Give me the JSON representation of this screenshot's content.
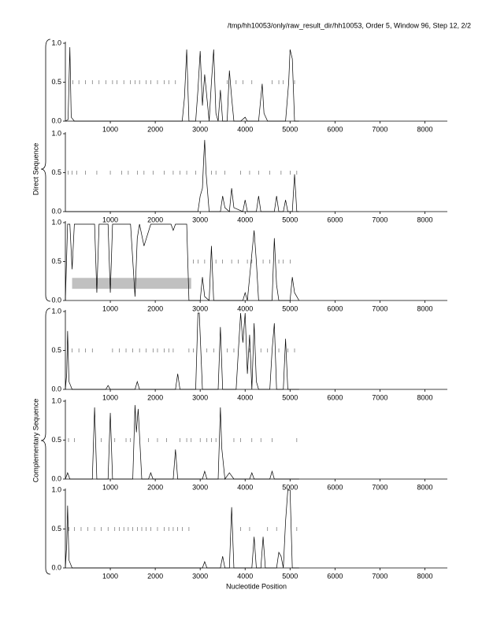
{
  "header": "/tmp/hh10053/only/raw_result_dir/hh10053, Order 5, Window 96, Step 12, 2/2",
  "strand_labels": {
    "direct": "Direct Sequence",
    "complementary": "Complementary Sequence"
  },
  "chart_data": [
    {
      "type": "line",
      "color": "#000000",
      "x": [
        0,
        60,
        100,
        130,
        200,
        2600,
        2650,
        2700,
        2750,
        2900,
        2950,
        3000,
        3050,
        3100,
        3200,
        3250,
        3300,
        3350,
        3400,
        3450,
        3500,
        3600,
        3650,
        3700,
        3750,
        3900,
        4000,
        4050,
        4300,
        4380,
        4420,
        4500,
        4900,
        4970,
        5000,
        5050,
        5100,
        5200
      ],
      "values": [
        0,
        0.02,
        0.95,
        0.05,
        0,
        0,
        0.3,
        0.92,
        0,
        0,
        0.4,
        0.9,
        0.2,
        0.6,
        0,
        0.5,
        0.92,
        0.1,
        0,
        0.4,
        0,
        0,
        0.65,
        0.3,
        0,
        0,
        0.05,
        0,
        0,
        0.48,
        0.1,
        0,
        0,
        0.5,
        0.92,
        0.8,
        0,
        0
      ],
      "codon_marks": [
        170,
        300,
        450,
        600,
        750,
        900,
        1050,
        1150,
        1300,
        1450,
        1550,
        1650,
        1800,
        1900,
        2050,
        2200,
        2300,
        2450,
        3600,
        3800,
        3950,
        4150,
        4600,
        4750,
        4850,
        5100
      ],
      "xlim": [
        0,
        8500
      ],
      "ylim": [
        0,
        1
      ],
      "xticks": [
        1000,
        2000,
        3000,
        4000,
        5000,
        6000,
        7000,
        8000
      ],
      "yticks": [
        {
          "value": 0,
          "label": "0.0"
        },
        {
          "value": 0.5,
          "label": "0.5"
        },
        {
          "value": 1,
          "label": "1.0"
        }
      ]
    },
    {
      "type": "line",
      "color": "#000000",
      "x": [
        0,
        2950,
        3000,
        3050,
        3080,
        3100,
        3130,
        3200,
        3450,
        3500,
        3550,
        3650,
        3700,
        3750,
        3950,
        4000,
        4050,
        4250,
        4300,
        4350,
        4650,
        4700,
        4750,
        4850,
        4900,
        4950,
        5050,
        5100,
        5150,
        5200
      ],
      "values": [
        0,
        0,
        0.2,
        0.3,
        0.7,
        0.92,
        0.5,
        0,
        0,
        0.2,
        0.05,
        0,
        0.3,
        0.05,
        0,
        0.15,
        0,
        0,
        0.2,
        0,
        0,
        0.2,
        0,
        0,
        0.15,
        0,
        0,
        0.48,
        0,
        0
      ],
      "codon_marks": [
        60,
        150,
        250,
        450,
        700,
        1000,
        1250,
        1400,
        1600,
        1750,
        1950,
        2200,
        2400,
        2550,
        2700,
        2900,
        3250,
        3350,
        3550,
        3900,
        4100,
        4300,
        4550,
        4800,
        5000,
        5150
      ],
      "xlim": [
        0,
        8500
      ],
      "ylim": [
        0,
        1
      ],
      "xticks": [
        1000,
        2000,
        3000,
        4000,
        5000,
        6000,
        7000,
        8000
      ],
      "yticks": [
        {
          "value": 0,
          "label": "0.0"
        },
        {
          "value": 0.5,
          "label": "0.5"
        },
        {
          "value": 1,
          "label": "1.0"
        }
      ]
    },
    {
      "type": "line",
      "color": "#000000",
      "x": [
        0,
        50,
        100,
        150,
        200,
        300,
        400,
        500,
        650,
        700,
        750,
        850,
        950,
        1000,
        1050,
        1200,
        1450,
        1550,
        1600,
        1650,
        1750,
        1900,
        2100,
        2350,
        2400,
        2450,
        2600,
        2700,
        2750,
        2800,
        3000,
        3050,
        3100,
        3200,
        3250,
        3300,
        3950,
        4000,
        4050,
        4150,
        4200,
        4250,
        4300,
        4600,
        4650,
        4700,
        4750,
        5000,
        5050,
        5100,
        5200
      ],
      "values": [
        0,
        0.98,
        0.98,
        0.4,
        0.98,
        0.98,
        0.98,
        0.98,
        0.98,
        0.1,
        0.98,
        0.98,
        0.98,
        0.1,
        0.98,
        0.98,
        0.98,
        0.05,
        0.8,
        0.98,
        0.7,
        0.98,
        0.98,
        0.98,
        0.9,
        0.98,
        0.98,
        0.98,
        0,
        0,
        0,
        0.3,
        0.05,
        0,
        0.7,
        0,
        0,
        0.1,
        0,
        0.6,
        0.9,
        0.5,
        0,
        0,
        0.8,
        0.2,
        0,
        0,
        0.3,
        0.1,
        0
      ],
      "codon_marks": [
        2850,
        2950,
        3100,
        3350,
        3500,
        3700,
        3850,
        4050,
        4150,
        4400,
        4550,
        4750,
        4850,
        5000
      ],
      "regions": [
        {
          "start": 150,
          "end": 2800,
          "low": 0.15,
          "high": 0.29
        }
      ],
      "xlim": [
        0,
        8500
      ],
      "ylim": [
        0,
        1
      ],
      "xticks": [
        1000,
        2000,
        3000,
        4000,
        5000,
        6000,
        7000,
        8000
      ],
      "yticks": [
        {
          "value": 0,
          "label": "0.0"
        },
        {
          "value": 0.5,
          "label": "0.5"
        },
        {
          "value": 1,
          "label": "1.0"
        }
      ]
    },
    {
      "type": "line",
      "color": "#000000",
      "x": [
        0,
        30,
        50,
        80,
        150,
        900,
        950,
        1000,
        1550,
        1600,
        1650,
        2450,
        2500,
        2550,
        2900,
        2950,
        2980,
        3050,
        3400,
        3450,
        3500,
        3800,
        3850,
        3900,
        3950,
        4000,
        4050,
        4100,
        4150,
        4200,
        4250,
        4300,
        4550,
        4600,
        4650,
        4700,
        4850,
        4900,
        4950,
        5200
      ],
      "values": [
        0,
        0.2,
        0.75,
        0.1,
        0,
        0,
        0.05,
        0,
        0,
        0.1,
        0,
        0,
        0.2,
        0,
        0,
        0.98,
        0.98,
        0,
        0,
        0.8,
        0,
        0,
        0.5,
        0.98,
        0.6,
        0.98,
        0.2,
        0.7,
        0,
        0.85,
        0.1,
        0,
        0,
        0.5,
        0.85,
        0,
        0,
        0.65,
        0,
        0
      ],
      "codon_marks": [
        150,
        300,
        450,
        600,
        1050,
        1200,
        1350,
        1500,
        1650,
        1800,
        1950,
        2050,
        2200,
        2300,
        2400,
        2750,
        2850,
        3150,
        3300,
        3600,
        3750,
        4100,
        4350,
        4500,
        4750,
        4950,
        5100
      ],
      "xlim": [
        0,
        8500
      ],
      "ylim": [
        0,
        1
      ],
      "xticks": [
        1000,
        2000,
        3000,
        4000,
        5000,
        6000,
        7000,
        8000
      ],
      "yticks": [
        {
          "value": 0,
          "label": "0.0"
        },
        {
          "value": 0.5,
          "label": "0.5"
        },
        {
          "value": 1,
          "label": "1.0"
        }
      ]
    },
    {
      "type": "line",
      "color": "#000000",
      "x": [
        0,
        50,
        100,
        600,
        650,
        700,
        950,
        1000,
        1050,
        1500,
        1550,
        1580,
        1620,
        1700,
        1850,
        1900,
        1950,
        2400,
        2450,
        2500,
        3050,
        3100,
        3150,
        3400,
        3450,
        3480,
        3550,
        3650,
        3750,
        4100,
        4150,
        4200,
        4550,
        4600,
        4650,
        5200
      ],
      "values": [
        0,
        0.08,
        0,
        0,
        0.92,
        0,
        0,
        0.85,
        0,
        0,
        0.95,
        0.6,
        0.9,
        0,
        0,
        0.08,
        0,
        0,
        0.38,
        0,
        0,
        0.1,
        0,
        0,
        0.92,
        0.4,
        0,
        0.08,
        0,
        0,
        0.08,
        0,
        0,
        0.1,
        0,
        0
      ],
      "codon_marks": [
        70,
        200,
        800,
        1100,
        1350,
        1450,
        1850,
        2050,
        2250,
        2550,
        2700,
        2800,
        3000,
        3150,
        3250,
        3350,
        3750,
        3900,
        4150,
        4350,
        4600,
        5150
      ],
      "xlim": [
        0,
        8500
      ],
      "ylim": [
        0,
        1
      ],
      "xticks": [
        1000,
        2000,
        3000,
        4000,
        5000,
        6000,
        7000,
        8000
      ],
      "yticks": [
        {
          "value": 0,
          "label": "0.0"
        },
        {
          "value": 0.5,
          "label": "0.5"
        },
        {
          "value": 1,
          "label": "1.0"
        }
      ]
    },
    {
      "type": "line",
      "color": "#000000",
      "xlabel": "Nucleotide Position",
      "x": [
        0,
        30,
        50,
        80,
        150,
        3050,
        3100,
        3150,
        3450,
        3500,
        3550,
        3650,
        3700,
        3750,
        4150,
        4200,
        4250,
        4350,
        4400,
        4450,
        4700,
        4750,
        4800,
        4850,
        4900,
        4950,
        5000,
        5050,
        5200
      ],
      "values": [
        0,
        0.3,
        0.8,
        0.1,
        0,
        0,
        0.08,
        0,
        0,
        0.15,
        0,
        0,
        0.78,
        0,
        0,
        0.4,
        0,
        0,
        0.4,
        0,
        0,
        0.2,
        0.15,
        0,
        0.6,
        1.0,
        1.0,
        0,
        0
      ],
      "codon_marks": [
        80,
        200,
        350,
        500,
        650,
        800,
        950,
        1100,
        1200,
        1300,
        1400,
        1500,
        1600,
        1700,
        1800,
        1900,
        2050,
        2200,
        2300,
        2400,
        2500,
        2600,
        2750,
        3900,
        4100,
        4500,
        4700,
        5150
      ],
      "xlim": [
        0,
        8500
      ],
      "ylim": [
        0,
        1
      ],
      "xticks": [
        1000,
        2000,
        3000,
        4000,
        5000,
        6000,
        7000,
        8000
      ],
      "yticks": [
        {
          "value": 0,
          "label": "0.0"
        },
        {
          "value": 0.5,
          "label": "0.5"
        },
        {
          "value": 1,
          "label": "1.0"
        }
      ]
    }
  ]
}
